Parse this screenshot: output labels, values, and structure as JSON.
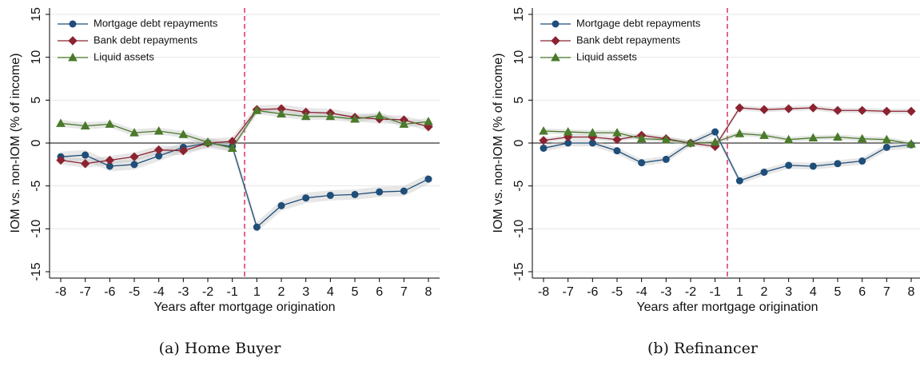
{
  "chart_data": [
    {
      "type": "line",
      "caption": "(a) Home Buyer",
      "x_label": "Years after mortgage origination",
      "y_label": "IOM vs. non-IOM (% of income)",
      "categories": [
        "-8",
        "-7",
        "-6",
        "-5",
        "-4",
        "-3",
        "-2",
        "-1",
        "1",
        "2",
        "3",
        "4",
        "5",
        "6",
        "7",
        "8"
      ],
      "vline_after": "-1",
      "ylim": [
        -15,
        15
      ],
      "yticks": [
        -15,
        -10,
        -5,
        0,
        5,
        10,
        15
      ],
      "grid": true,
      "legend": "top-left",
      "series": [
        {
          "name": "Mortgage debt repayments",
          "color": "#1f4e79",
          "marker": "circle",
          "ci": 0.6,
          "values": [
            -1.6,
            -1.4,
            -2.7,
            -2.5,
            -1.5,
            -0.5,
            0,
            -0.4,
            -9.8,
            -7.3,
            -6.4,
            -6.1,
            -6.0,
            -5.7,
            -5.6,
            -4.2
          ]
        },
        {
          "name": "Bank debt repayments",
          "color": "#8b2331",
          "marker": "diamond",
          "ci": 0.5,
          "values": [
            -2.0,
            -2.4,
            -2.0,
            -1.6,
            -0.8,
            -0.9,
            0,
            0.2,
            3.9,
            4.0,
            3.6,
            3.5,
            3.0,
            2.8,
            2.7,
            1.9
          ]
        },
        {
          "name": "Liquid assets",
          "color": "#4a7a2a",
          "marker": "triangle",
          "ci": 0.4,
          "values": [
            2.3,
            2.0,
            2.2,
            1.2,
            1.4,
            1.0,
            0.1,
            -0.6,
            3.8,
            3.4,
            3.1,
            3.1,
            2.8,
            3.2,
            2.2,
            2.5
          ]
        }
      ]
    },
    {
      "type": "line",
      "caption": "(b) Refinancer",
      "x_label": "Years after mortgage origination",
      "y_label": "IOM vs. non-IOM (% of income)",
      "categories": [
        "-8",
        "-7",
        "-6",
        "-5",
        "-4",
        "-3",
        "-2",
        "-1",
        "1",
        "2",
        "3",
        "4",
        "5",
        "6",
        "7",
        "8"
      ],
      "vline_after": "-1",
      "ylim": [
        -15,
        15
      ],
      "yticks": [
        -15,
        -10,
        -5,
        0,
        5,
        10,
        15
      ],
      "grid": true,
      "legend": "top-left",
      "series": [
        {
          "name": "Mortgage debt repayments",
          "color": "#1f4e79",
          "marker": "circle",
          "ci": 0.4,
          "values": [
            -0.6,
            0.0,
            0.0,
            -0.9,
            -2.3,
            -1.9,
            0,
            1.3,
            -4.4,
            -3.4,
            -2.6,
            -2.7,
            -2.4,
            -2.1,
            -0.5,
            -0.2
          ]
        },
        {
          "name": "Bank debt repayments",
          "color": "#8b2331",
          "marker": "diamond",
          "ci": 0.3,
          "values": [
            0.3,
            0.7,
            0.7,
            0.4,
            0.9,
            0.5,
            0,
            -0.4,
            4.1,
            3.9,
            4.0,
            4.1,
            3.8,
            3.8,
            3.7,
            3.7
          ]
        },
        {
          "name": "Liquid assets",
          "color": "#4a7a2a",
          "marker": "triangle",
          "ci": 0.3,
          "values": [
            1.4,
            1.3,
            1.2,
            1.2,
            0.5,
            0.4,
            0,
            0.1,
            1.1,
            0.9,
            0.4,
            0.6,
            0.7,
            0.5,
            0.4,
            -0.1
          ]
        }
      ]
    }
  ]
}
